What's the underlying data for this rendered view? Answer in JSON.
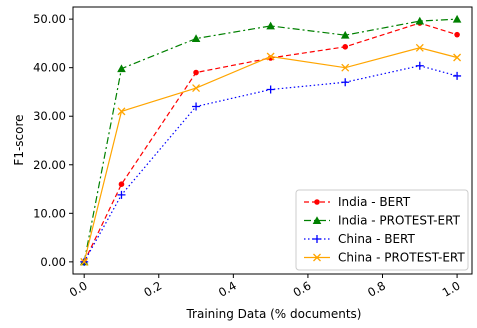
{
  "chart_data": {
    "type": "line",
    "title": "",
    "xlabel": "Training Data (% documents)",
    "ylabel": "F1-score",
    "xlim": [
      -0.03,
      1.04
    ],
    "ylim": [
      -2.5,
      52.5
    ],
    "x": [
      0.0,
      0.1,
      0.3,
      0.5,
      0.7,
      0.9,
      1.0
    ],
    "xticks": [
      "0.0",
      "0.2",
      "0.4",
      "0.6",
      "0.8",
      "1.0"
    ],
    "xtick_values": [
      0.0,
      0.2,
      0.4,
      0.6,
      0.8,
      1.0
    ],
    "yticks": [
      "0.00",
      "10.00",
      "20.00",
      "30.00",
      "40.00",
      "50.00"
    ],
    "ytick_values": [
      0,
      10,
      20,
      30,
      40,
      50
    ],
    "grid": false,
    "legend_position": "bottom-right",
    "series": [
      {
        "name": "India - BERT",
        "values": [
          0,
          16.0,
          39.0,
          42.0,
          44.3,
          49.2,
          46.8
        ],
        "color": "#ff0000",
        "marker": "dot",
        "dash": "dashed"
      },
      {
        "name": "India - PROTEST-ERT",
        "values": [
          0,
          39.8,
          46.0,
          48.6,
          46.7,
          49.6,
          50.0
        ],
        "color": "#008000",
        "marker": "triangle",
        "dash": "dashdot"
      },
      {
        "name": "China - BERT",
        "values": [
          0,
          13.8,
          32.0,
          35.5,
          37.0,
          40.4,
          38.3
        ],
        "color": "#0000ff",
        "marker": "plus",
        "dash": "dotted"
      },
      {
        "name": "China - PROTEST-ERT",
        "values": [
          0,
          31.0,
          35.8,
          42.3,
          40.0,
          44.1,
          42.1
        ],
        "color": "#ffa500",
        "marker": "x",
        "dash": "solid"
      }
    ]
  }
}
